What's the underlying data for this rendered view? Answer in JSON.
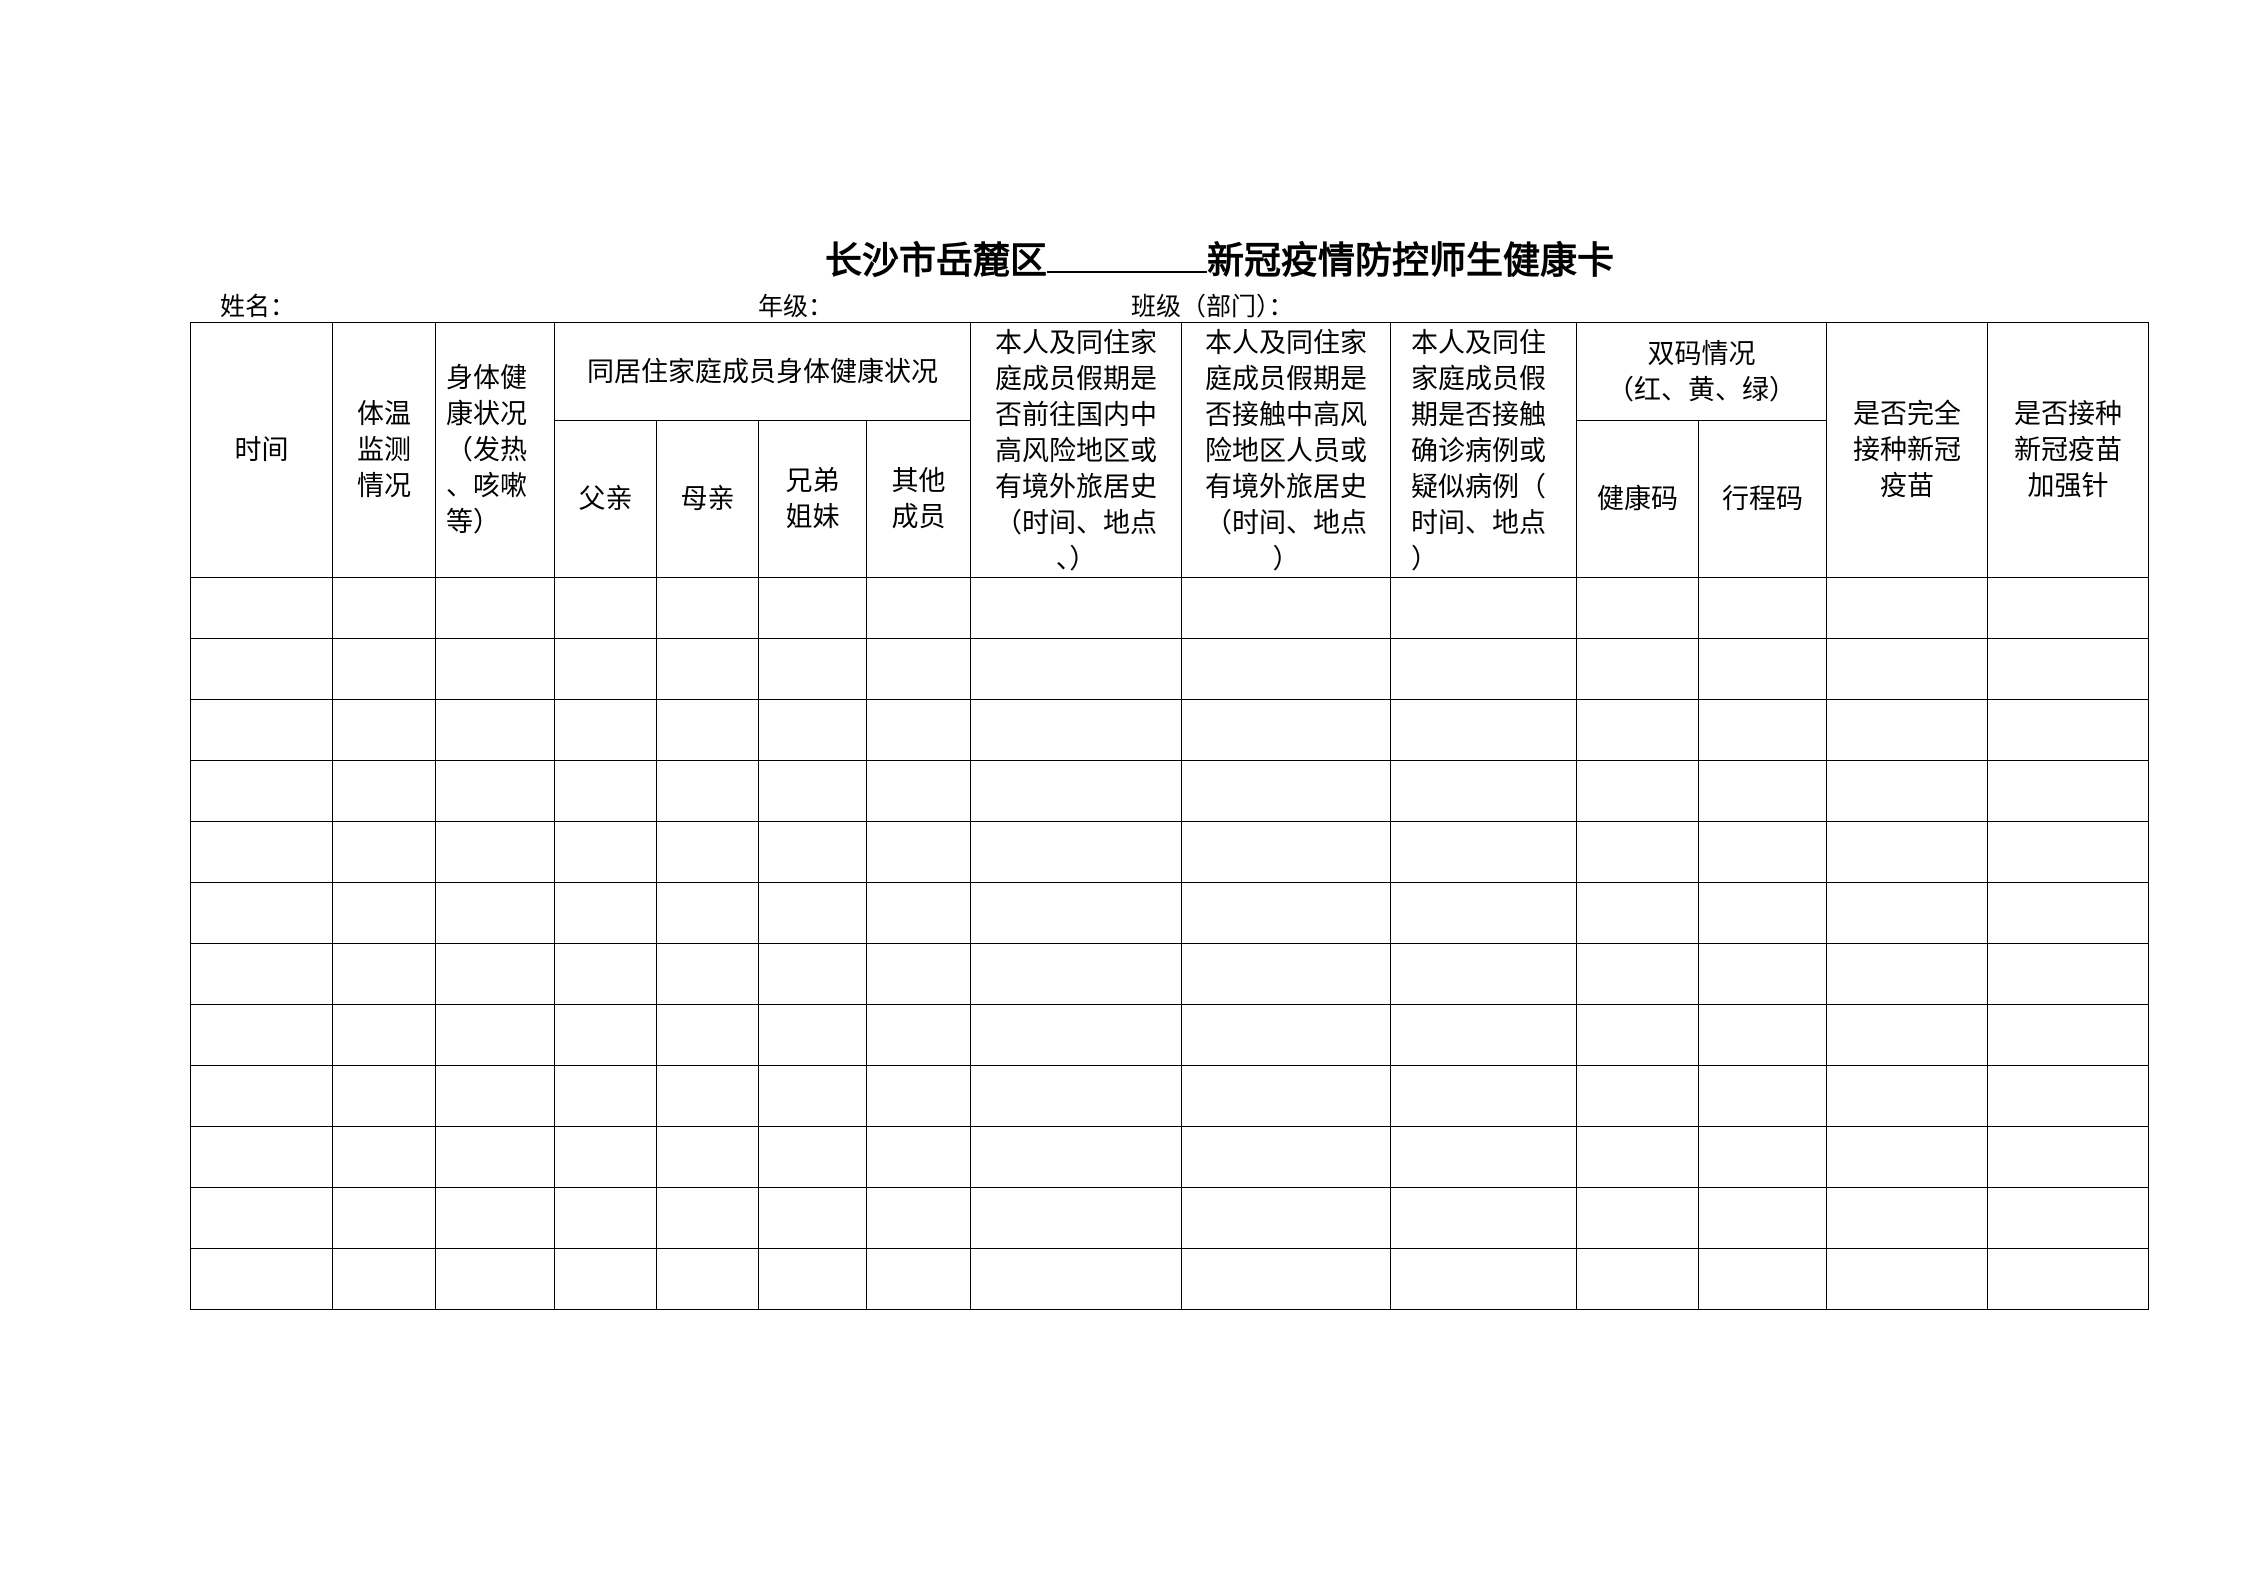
{
  "title": {
    "prefix": "长沙市岳麓区",
    "suffix": "新冠疫情防控师生健康卡"
  },
  "fields": {
    "name": "姓名：",
    "grade": "年级：",
    "class": "班级（部门）："
  },
  "headers": {
    "time": "时间",
    "temp": "体温\n监测\n情况",
    "health": "身体健\n康状况\n（发热\n、咳嗽\n等）",
    "family": "同居住家庭成员身体健康状况",
    "father": "父亲",
    "mother": "母亲",
    "siblings": "兄弟\n姐妹",
    "others": "其他\n成员",
    "travel": "本人及同住家\n庭成员假期是\n否前往国内中\n高风险地区或\n有境外旅居史\n（时间、地点\n、）",
    "contact_risk": "本人及同住家\n庭成员假期是\n否接触中高风\n险地区人员或\n有境外旅居史\n（时间、地点\n）",
    "contact_case": "本人及同住\n家庭成员假\n期是否接触\n确诊病例或\n疑似病例（\n时间、地点\n）",
    "codes": "双码情况\n（红、黄、绿）",
    "health_code": "健康码",
    "trip_code": "行程码",
    "vaccinated": "是否完全\n接种新冠\n疫苗",
    "booster": "是否接种\n新冠疫苗\n加强针"
  },
  "data_rows": 12,
  "columns": 14
}
